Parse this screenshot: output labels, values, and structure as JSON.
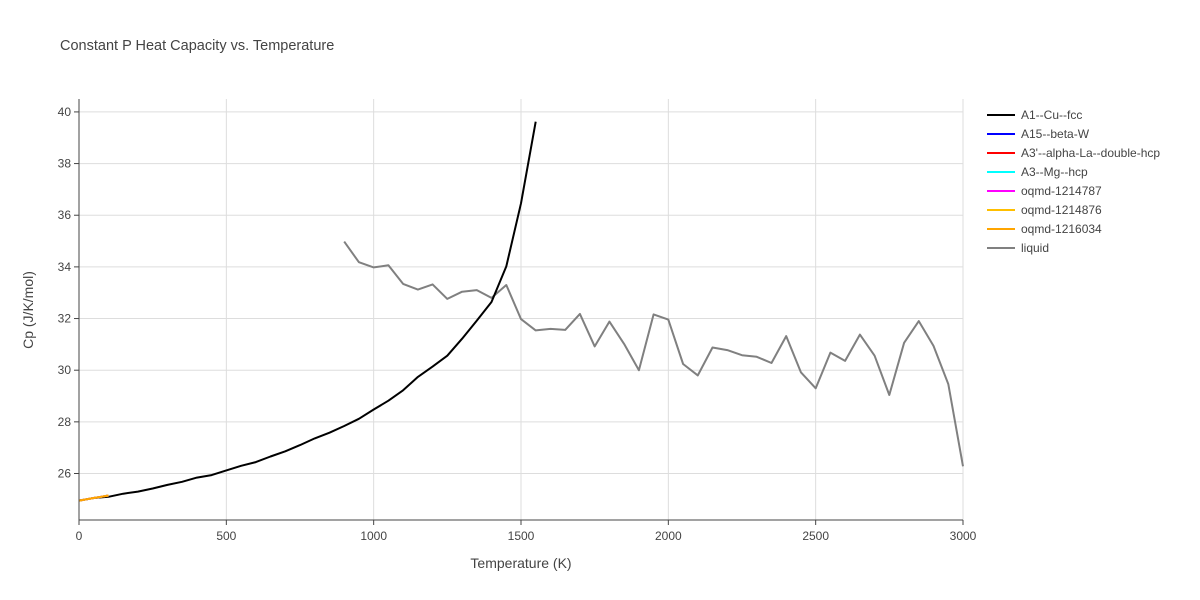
{
  "chart_data": {
    "type": "line",
    "title": "Constant P Heat Capacity vs. Temperature",
    "xlabel": "Temperature (K)",
    "ylabel": "Cp (J/K/mol)",
    "xlim": [
      0,
      3000
    ],
    "ylim": [
      24.2,
      40.5
    ],
    "xticks": [
      0,
      500,
      1000,
      1500,
      2000,
      2500,
      3000
    ],
    "yticks": [
      26,
      28,
      30,
      32,
      34,
      36,
      38,
      40
    ],
    "grid": true,
    "legend_position": "top-right",
    "series": [
      {
        "name": "A1--Cu--fcc",
        "color": "#000000",
        "x": [
          0,
          50,
          100,
          150,
          200,
          250,
          300,
          350,
          400,
          450,
          500,
          550,
          600,
          650,
          700,
          750,
          800,
          850,
          900,
          950,
          1000,
          1050,
          1100,
          1150,
          1200,
          1250,
          1300,
          1350,
          1400,
          1450,
          1500,
          1550
        ],
        "y": [
          24.95,
          25.05,
          25.1,
          25.22,
          25.3,
          25.42,
          25.56,
          25.68,
          25.84,
          25.94,
          26.12,
          26.3,
          26.44,
          26.66,
          26.86,
          27.1,
          27.36,
          27.58,
          27.84,
          28.12,
          28.48,
          28.82,
          29.22,
          29.74,
          30.14,
          30.56,
          31.22,
          31.92,
          32.64,
          34.02,
          36.46,
          39.62
        ]
      },
      {
        "name": "A15--beta-W",
        "color": "#0000ff",
        "x": [
          0,
          25,
          50,
          75,
          100
        ],
        "y": [
          24.95,
          25.0,
          25.05,
          25.1,
          25.15
        ]
      },
      {
        "name": "A3'--alpha-La--double-hcp",
        "color": "#ff0000",
        "x": [
          0,
          25,
          50,
          75,
          100
        ],
        "y": [
          24.95,
          25.0,
          25.05,
          25.1,
          25.15
        ]
      },
      {
        "name": "A3--Mg--hcp",
        "color": "#00ffff",
        "x": [
          0,
          25,
          50,
          75,
          100
        ],
        "y": [
          24.95,
          25.0,
          25.05,
          25.1,
          25.15
        ]
      },
      {
        "name": "oqmd-1214787",
        "color": "#ff00ff",
        "x": [
          0,
          25,
          50,
          75,
          100
        ],
        "y": [
          24.95,
          25.0,
          25.05,
          25.1,
          25.15
        ]
      },
      {
        "name": "oqmd-1214876",
        "color": "#ffbf00",
        "x": [
          0,
          25,
          50,
          75,
          100
        ],
        "y": [
          24.95,
          25.0,
          25.05,
          25.1,
          25.15
        ]
      },
      {
        "name": "oqmd-1216034",
        "color": "#ffa500",
        "x": [
          0,
          25,
          50,
          75,
          100
        ],
        "y": [
          24.95,
          25.0,
          25.05,
          25.1,
          25.15
        ]
      },
      {
        "name": "liquid",
        "color": "#808080",
        "x": [
          900,
          950,
          1000,
          1050,
          1100,
          1150,
          1200,
          1250,
          1300,
          1350,
          1400,
          1450,
          1500,
          1550,
          1600,
          1650,
          1700,
          1750,
          1800,
          1850,
          1900,
          1950,
          2000,
          2050,
          2100,
          2150,
          2200,
          2250,
          2300,
          2350,
          2400,
          2450,
          2500,
          2550,
          2600,
          2650,
          2700,
          2750,
          2800,
          2850,
          2900,
          2950,
          3000
        ],
        "y": [
          34.98,
          34.18,
          33.98,
          34.06,
          33.34,
          33.12,
          33.32,
          32.76,
          33.04,
          33.1,
          32.8,
          33.3,
          31.98,
          31.54,
          31.6,
          31.56,
          32.18,
          30.92,
          31.88,
          31.02,
          30.0,
          32.16,
          31.96,
          30.24,
          29.8,
          30.88,
          30.78,
          30.58,
          30.52,
          30.28,
          31.32,
          29.92,
          29.3,
          30.68,
          30.36,
          31.38,
          30.56,
          29.04,
          31.06,
          31.9,
          30.94,
          29.46,
          26.28
        ]
      }
    ]
  }
}
